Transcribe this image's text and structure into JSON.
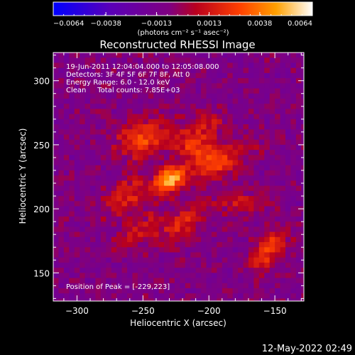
{
  "chart_data": {
    "type": "heatmap",
    "title": "Reconstructed RHESSI Image",
    "xlabel": "Heliocentric X (arcsec)",
    "ylabel": "Heliocentric Y (arcsec)",
    "xlim": [
      -318,
      -128
    ],
    "ylim": [
      128,
      322
    ],
    "x_ticks": [
      -300,
      -250,
      -200,
      -150
    ],
    "x_tick_labels": [
      "−300",
      "−250",
      "−200",
      "−150"
    ],
    "y_ticks": [
      150,
      200,
      250,
      300
    ],
    "y_tick_labels": [
      "150",
      "200",
      "250",
      "300"
    ],
    "colorbar": {
      "min": -0.0064,
      "max": 0.0064,
      "ticks": [
        -0.0064,
        -0.0038,
        -0.0013,
        0.0013,
        0.0038,
        0.0064
      ],
      "tick_labels": [
        "−0.0064",
        "−0.0038",
        "−0.0013",
        "0.0013",
        "0.0038",
        "0.0064"
      ],
      "units": "(photons cm⁻² s⁻¹ asec⁻²)"
    },
    "annotations": [
      "19-Jun-2011 12:04:04.000 to 12:05:08.000",
      "Detectors: 3F 4F 5F 6F 7F 8F, Att 0",
      "Energy Range: 6.0 - 12.0 keV",
      "Clean     Total counts: 7.85E+03"
    ],
    "peak_label": "Position of Peak = [-229,223]",
    "peak": {
      "x": -229,
      "y": 223,
      "value": 0.0064
    },
    "sources": [
      {
        "x": -229,
        "y": 223,
        "sx": 9,
        "sy": 6,
        "amp": 0.0064,
        "angle": 35
      },
      {
        "x": -250,
        "y": 255,
        "sx": 14,
        "sy": 10,
        "amp": 0.0036,
        "angle": 20
      },
      {
        "x": -210,
        "y": 248,
        "sx": 12,
        "sy": 8,
        "amp": 0.0034,
        "angle": -30
      },
      {
        "x": -190,
        "y": 236,
        "sx": 16,
        "sy": 7,
        "amp": 0.003,
        "angle": 30
      },
      {
        "x": -262,
        "y": 210,
        "sx": 14,
        "sy": 9,
        "amp": 0.0026,
        "angle": 40
      },
      {
        "x": -155,
        "y": 167,
        "sx": 7,
        "sy": 13,
        "amp": 0.0034,
        "angle": -40
      },
      {
        "x": -222,
        "y": 188,
        "sx": 16,
        "sy": 8,
        "amp": 0.0024,
        "angle": 30
      },
      {
        "x": -175,
        "y": 205,
        "sx": 12,
        "sy": 6,
        "amp": 0.0022,
        "angle": 0
      },
      {
        "x": -255,
        "y": 182,
        "sx": 14,
        "sy": 6,
        "amp": 0.002,
        "angle": 45
      },
      {
        "x": -202,
        "y": 265,
        "sx": 9,
        "sy": 7,
        "amp": 0.0022,
        "angle": 0
      }
    ]
  },
  "footer": {
    "timestamp": "12-May-2022 02:49"
  }
}
